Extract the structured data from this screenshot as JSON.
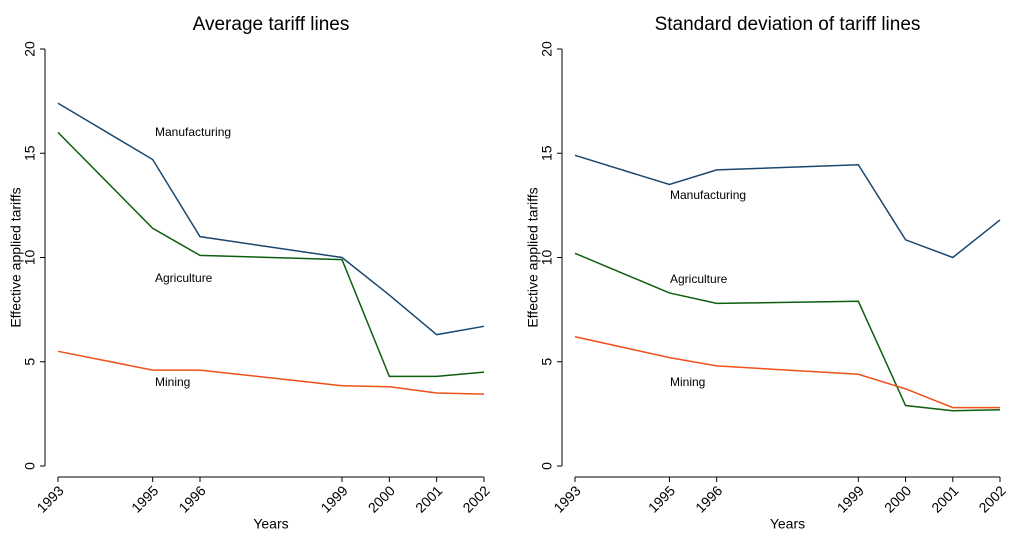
{
  "chart_data": [
    {
      "type": "line",
      "title": "Average tariff lines",
      "xlabel": "Years",
      "ylabel": "Effective applied tariffs",
      "x": [
        1993,
        1995,
        1996,
        1999,
        2000,
        2001,
        2002
      ],
      "xlim": [
        1993,
        2002
      ],
      "xticks": [
        1993,
        1995,
        1996,
        1999,
        2000,
        2001,
        2002
      ],
      "ylim": [
        0,
        20
      ],
      "yticks": [
        0,
        5,
        10,
        15,
        20
      ],
      "series": [
        {
          "name": "Manufacturing",
          "color": "#1a476f",
          "values": [
            17.4,
            14.7,
            11.0,
            10.0,
            8.2,
            6.3,
            6.7
          ]
        },
        {
          "name": "Agriculture",
          "color": "#0e5e0e",
          "values": [
            16.0,
            11.4,
            10.1,
            9.9,
            4.3,
            4.3,
            4.5
          ]
        },
        {
          "name": "Mining",
          "color": "#f0501a",
          "values": [
            5.5,
            4.6,
            4.6,
            3.85,
            3.8,
            3.5,
            3.45
          ]
        }
      ]
    },
    {
      "type": "line",
      "title": "Standard deviation of tariff lines",
      "xlabel": "Years",
      "ylabel": "Effective applied tariffs",
      "x": [
        1993,
        1995,
        1996,
        1999,
        2000,
        2001,
        2002
      ],
      "xlim": [
        1993,
        2002
      ],
      "xticks": [
        1993,
        1995,
        1996,
        1999,
        2000,
        2001,
        2002
      ],
      "ylim": [
        0,
        20
      ],
      "yticks": [
        0,
        5,
        10,
        15,
        20
      ],
      "series": [
        {
          "name": "Manufacturing",
          "color": "#1a476f",
          "values": [
            14.9,
            13.5,
            14.2,
            14.45,
            10.85,
            10.0,
            11.8
          ]
        },
        {
          "name": "Agriculture",
          "color": "#0e5e0e",
          "values": [
            10.2,
            8.3,
            7.8,
            7.9,
            2.9,
            2.65,
            2.7
          ]
        },
        {
          "name": "Mining",
          "color": "#f0501a",
          "values": [
            6.2,
            5.2,
            4.8,
            4.4,
            3.7,
            2.8,
            2.8
          ]
        }
      ]
    }
  ]
}
